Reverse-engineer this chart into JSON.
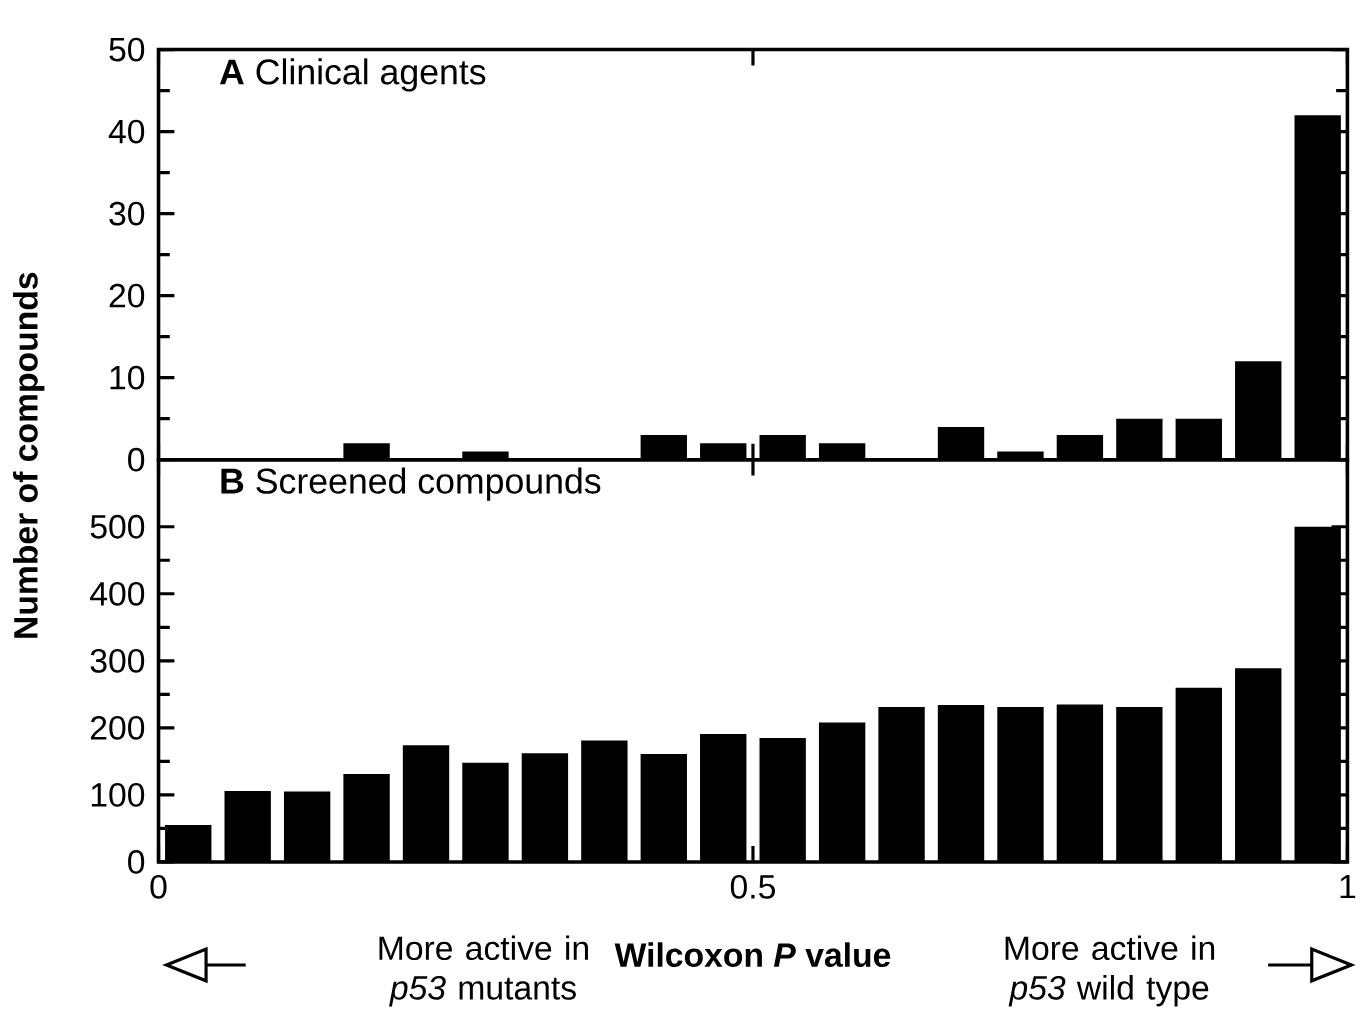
{
  "chart_data": [
    {
      "type": "histogram",
      "title": "**A** Clinical agents",
      "ylabel": "Number of compounds",
      "color": "#000000",
      "bins": [
        0,
        0.05,
        0.1,
        0.15,
        0.2,
        0.25,
        0.3,
        0.35,
        0.4,
        0.45,
        0.5,
        0.55,
        0.6,
        0.65,
        0.7,
        0.75,
        0.8,
        0.85,
        0.9,
        0.95,
        1
      ],
      "values": [
        0,
        0,
        0,
        2,
        0,
        1,
        0,
        0,
        3,
        2,
        3,
        2,
        0,
        4,
        1,
        3,
        5,
        5,
        12,
        42
      ],
      "xlim": [
        0,
        1
      ],
      "xticks": [
        0,
        0.5,
        1
      ],
      "ylim": [
        0,
        50
      ],
      "yticks": [
        0,
        10,
        20,
        30,
        40,
        50
      ],
      "tick_labels": "y"
    },
    {
      "type": "histogram",
      "title": "**B** Screened compounds",
      "xlabel": "Wilcoxon *P* value",
      "color": "#000000",
      "bins": [
        0,
        0.05,
        0.1,
        0.15,
        0.2,
        0.25,
        0.3,
        0.35,
        0.4,
        0.45,
        0.5,
        0.55,
        0.6,
        0.65,
        0.7,
        0.75,
        0.8,
        0.85,
        0.9,
        0.95,
        1
      ],
      "values": [
        55,
        106,
        105,
        131,
        174,
        148,
        162,
        181,
        161,
        191,
        185,
        208,
        231,
        234,
        231,
        235,
        231,
        260,
        289,
        500
      ],
      "xlim": [
        0,
        1
      ],
      "xticks": [
        0,
        0.5,
        1
      ],
      "ylim": [
        0,
        600
      ],
      "yticks": [
        0,
        100,
        200,
        300,
        400,
        500
      ],
      "annotations": [
        "More active in *p53* mutants",
        "More active in *p53* wild type"
      ]
    }
  ]
}
